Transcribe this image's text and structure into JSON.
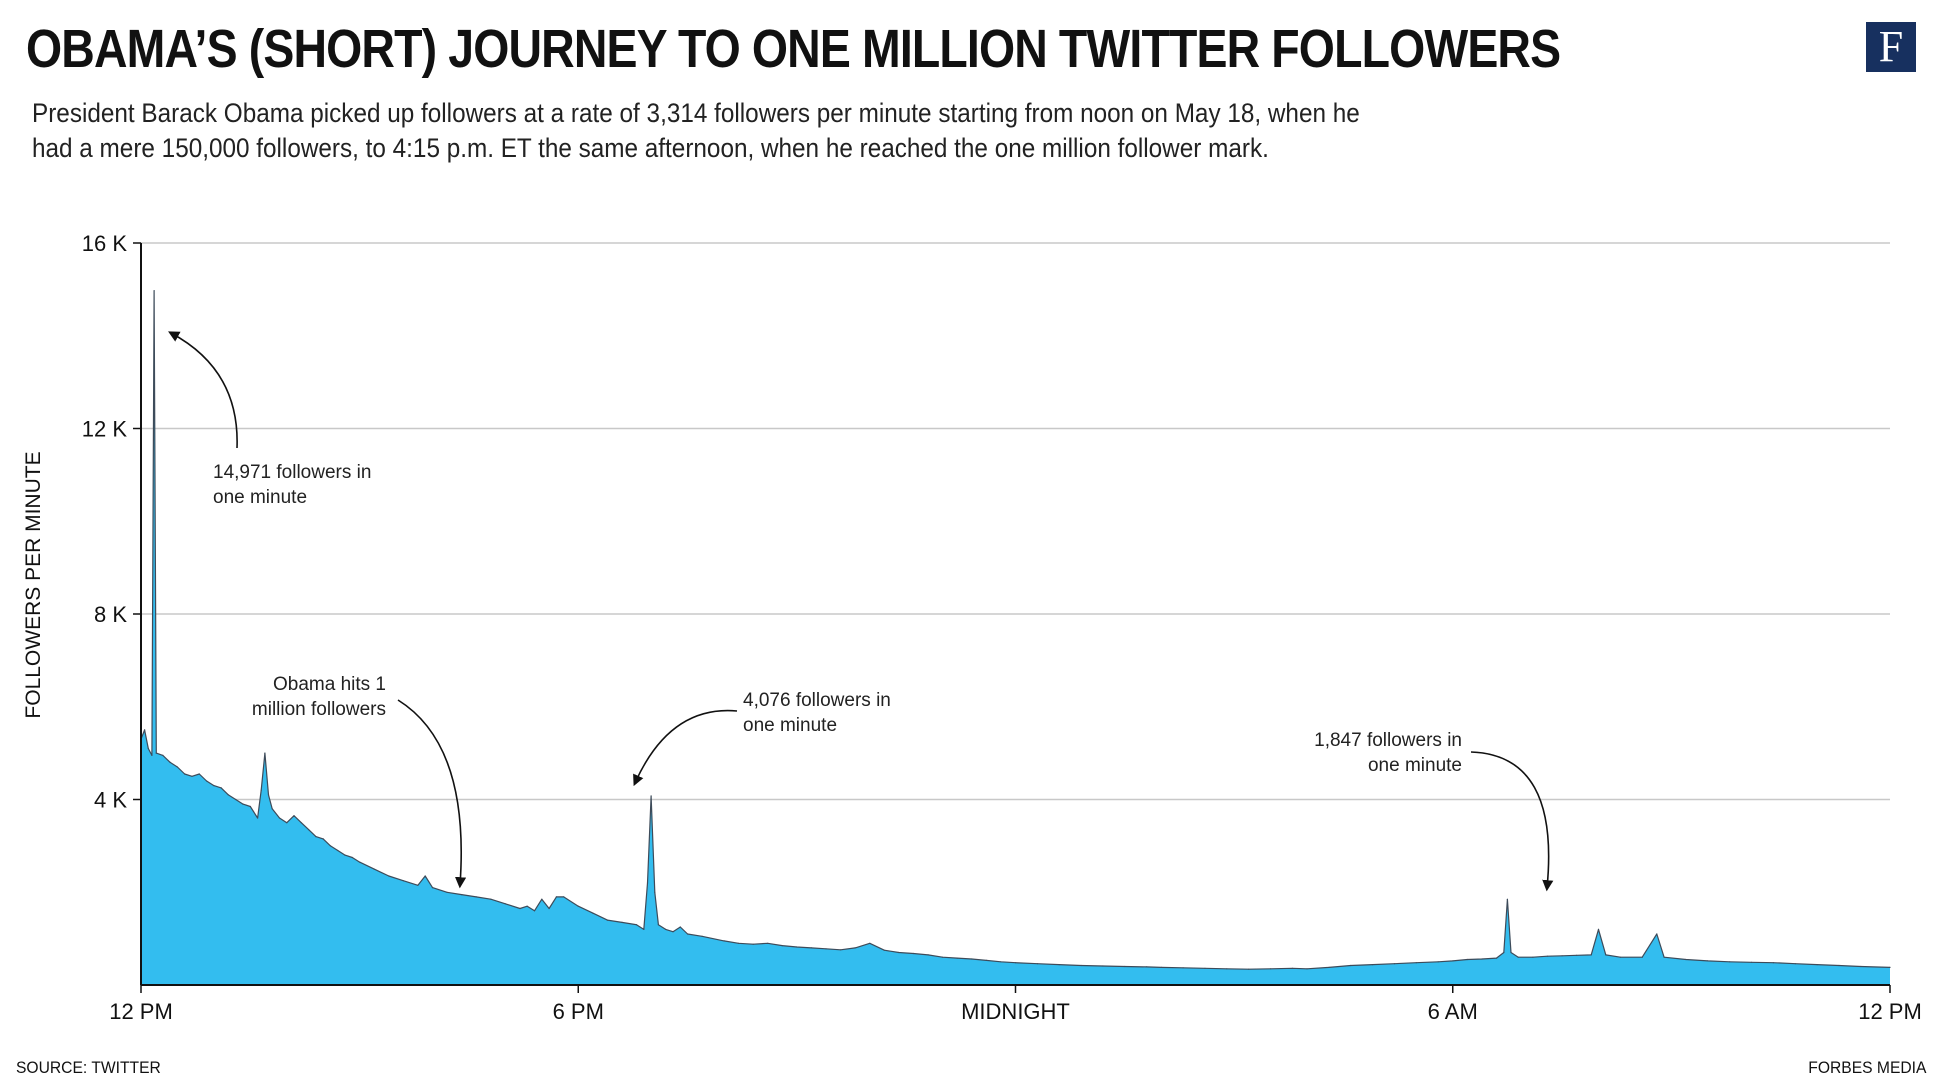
{
  "header": {
    "title": "OBAMA’S (SHORT) JOURNEY TO ONE MILLION TWITTER FOLLOWERS",
    "subtitle": "President Barack Obama picked up followers at a rate of 3,314 followers per minute starting from noon on May 18, when he had a mere 150,000 followers, to 4:15 p.m. ET the same afternoon, when he reached the one million follower mark.",
    "logo": "F"
  },
  "footer": {
    "source": "SOURCE: TWITTER",
    "credit": "FORBES MEDIA"
  },
  "colors": {
    "area_fill": "#33bdef",
    "area_stroke": "#3d4b5a",
    "grid": "#c8c8c8",
    "axis": "#111111",
    "logo_bg": "#17305f"
  },
  "chart_data": {
    "type": "area",
    "title": "OBAMA’S (SHORT) JOURNEY TO ONE MILLION TWITTER FOLLOWERS",
    "xlabel": "",
    "ylabel": "FOLLOWERS PER MINUTE",
    "x_unit": "hours since 12 PM",
    "xlim": [
      0,
      24
    ],
    "ylim": [
      0,
      16000
    ],
    "grid": true,
    "y_ticks": [
      {
        "value": 4000,
        "label": "4 K"
      },
      {
        "value": 8000,
        "label": "8 K"
      },
      {
        "value": 12000,
        "label": "12 K"
      },
      {
        "value": 16000,
        "label": "16 K"
      }
    ],
    "x_ticks": [
      {
        "value": 0,
        "label": "12 PM"
      },
      {
        "value": 6,
        "label": "6 PM"
      },
      {
        "value": 12,
        "label": "MIDNIGHT"
      },
      {
        "value": 18,
        "label": "6 AM"
      },
      {
        "value": 24,
        "label": "12 PM"
      }
    ],
    "series": [
      {
        "points": [
          [
            0,
            5300
          ],
          [
            0.05,
            5500
          ],
          [
            0.1,
            5100
          ],
          [
            0.15,
            4950
          ],
          [
            0.18,
            14971
          ],
          [
            0.21,
            5000
          ],
          [
            0.3,
            4950
          ],
          [
            0.4,
            4800
          ],
          [
            0.5,
            4700
          ],
          [
            0.6,
            4550
          ],
          [
            0.7,
            4500
          ],
          [
            0.8,
            4550
          ],
          [
            0.9,
            4400
          ],
          [
            1.0,
            4300
          ],
          [
            1.1,
            4250
          ],
          [
            1.2,
            4100
          ],
          [
            1.3,
            4000
          ],
          [
            1.4,
            3900
          ],
          [
            1.5,
            3850
          ],
          [
            1.6,
            3600
          ],
          [
            1.65,
            4200
          ],
          [
            1.7,
            5000
          ],
          [
            1.75,
            4100
          ],
          [
            1.8,
            3800
          ],
          [
            1.9,
            3600
          ],
          [
            2.0,
            3500
          ],
          [
            2.1,
            3650
          ],
          [
            2.2,
            3500
          ],
          [
            2.3,
            3350
          ],
          [
            2.4,
            3200
          ],
          [
            2.5,
            3150
          ],
          [
            2.6,
            3000
          ],
          [
            2.7,
            2900
          ],
          [
            2.8,
            2800
          ],
          [
            2.9,
            2750
          ],
          [
            3.0,
            2650
          ],
          [
            3.2,
            2500
          ],
          [
            3.4,
            2350
          ],
          [
            3.6,
            2250
          ],
          [
            3.8,
            2150
          ],
          [
            3.9,
            2350
          ],
          [
            4.0,
            2100
          ],
          [
            4.2,
            2000
          ],
          [
            4.4,
            1950
          ],
          [
            4.6,
            1900
          ],
          [
            4.8,
            1850
          ],
          [
            5.0,
            1750
          ],
          [
            5.2,
            1650
          ],
          [
            5.3,
            1700
          ],
          [
            5.4,
            1600
          ],
          [
            5.5,
            1850
          ],
          [
            5.6,
            1650
          ],
          [
            5.7,
            1900
          ],
          [
            5.8,
            1900
          ],
          [
            6.0,
            1700
          ],
          [
            6.2,
            1550
          ],
          [
            6.4,
            1400
          ],
          [
            6.6,
            1350
          ],
          [
            6.8,
            1300
          ],
          [
            6.9,
            1200
          ],
          [
            6.95,
            2200
          ],
          [
            7.0,
            4076
          ],
          [
            7.05,
            2000
          ],
          [
            7.1,
            1300
          ],
          [
            7.2,
            1200
          ],
          [
            7.3,
            1150
          ],
          [
            7.4,
            1250
          ],
          [
            7.5,
            1100
          ],
          [
            7.7,
            1050
          ],
          [
            8.0,
            950
          ],
          [
            8.2,
            900
          ],
          [
            8.4,
            880
          ],
          [
            8.6,
            900
          ],
          [
            8.8,
            850
          ],
          [
            9.0,
            820
          ],
          [
            9.2,
            800
          ],
          [
            9.4,
            780
          ],
          [
            9.6,
            760
          ],
          [
            9.8,
            800
          ],
          [
            10.0,
            900
          ],
          [
            10.2,
            750
          ],
          [
            10.4,
            700
          ],
          [
            10.6,
            680
          ],
          [
            10.8,
            650
          ],
          [
            11.0,
            600
          ],
          [
            11.2,
            580
          ],
          [
            11.4,
            560
          ],
          [
            11.6,
            530
          ],
          [
            11.8,
            500
          ],
          [
            12.0,
            480
          ],
          [
            12.3,
            460
          ],
          [
            12.6,
            440
          ],
          [
            12.9,
            420
          ],
          [
            13.2,
            410
          ],
          [
            13.5,
            400
          ],
          [
            13.8,
            390
          ],
          [
            14.0,
            380
          ],
          [
            14.3,
            370
          ],
          [
            14.6,
            360
          ],
          [
            14.9,
            350
          ],
          [
            15.2,
            340
          ],
          [
            15.5,
            350
          ],
          [
            15.8,
            360
          ],
          [
            16.0,
            350
          ],
          [
            16.3,
            380
          ],
          [
            16.6,
            420
          ],
          [
            16.9,
            440
          ],
          [
            17.2,
            460
          ],
          [
            17.5,
            480
          ],
          [
            17.8,
            500
          ],
          [
            18.0,
            520
          ],
          [
            18.2,
            550
          ],
          [
            18.4,
            560
          ],
          [
            18.6,
            580
          ],
          [
            18.7,
            700
          ],
          [
            18.75,
            1847
          ],
          [
            18.8,
            700
          ],
          [
            18.9,
            600
          ],
          [
            19.1,
            600
          ],
          [
            19.3,
            620
          ],
          [
            19.5,
            630
          ],
          [
            19.7,
            640
          ],
          [
            19.9,
            650
          ],
          [
            20.0,
            1200
          ],
          [
            20.1,
            650
          ],
          [
            20.3,
            600
          ],
          [
            20.6,
            600
          ],
          [
            20.8,
            1100
          ],
          [
            20.9,
            600
          ],
          [
            21.2,
            550
          ],
          [
            21.5,
            520
          ],
          [
            21.8,
            500
          ],
          [
            22.1,
            490
          ],
          [
            22.4,
            480
          ],
          [
            22.7,
            460
          ],
          [
            23.0,
            440
          ],
          [
            23.3,
            420
          ],
          [
            23.6,
            400
          ],
          [
            24.0,
            380
          ]
        ]
      }
    ],
    "annotations": [
      {
        "text": [
          "14,971 followers in",
          "one minute"
        ],
        "x": 0.18,
        "y": 14971
      },
      {
        "text": [
          "Obama hits 1",
          "million followers"
        ],
        "x": 4.25,
        "y": 2050
      },
      {
        "text": [
          "4,076 followers in",
          "one minute"
        ],
        "x": 7.0,
        "y": 4076
      },
      {
        "text": [
          "1,847 followers in",
          "one minute"
        ],
        "x": 18.75,
        "y": 1847
      }
    ]
  }
}
